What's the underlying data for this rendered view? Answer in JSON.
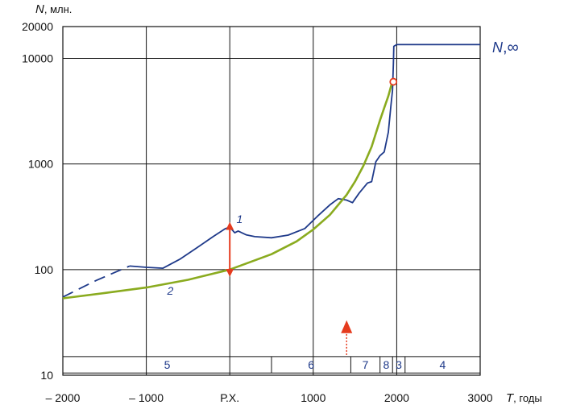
{
  "chart_data": {
    "type": "line",
    "y_scale": "log",
    "grid": true,
    "xlim": [
      -2000,
      3000
    ],
    "ylim": [
      10,
      20000
    ],
    "x_ticks": [
      -2000,
      -1000,
      0,
      1000,
      2000,
      3000
    ],
    "x_tick_labels": [
      "– 2000",
      "– 1000",
      "Р.Х.",
      "1000",
      "2000",
      "3000"
    ],
    "y_ticks": [
      10,
      100,
      1000,
      10000,
      20000
    ],
    "y_tick_labels": [
      "10",
      "100",
      "1000",
      "10000",
      "20000"
    ],
    "y_axis": {
      "var": "N",
      "unit": ", млн."
    },
    "x_axis": {
      "var": "T",
      "unit": ", годы"
    },
    "asymptote_label": {
      "var": "N",
      "sym": ",∞"
    },
    "series": [
      {
        "name": "1",
        "color": "#1f3a8a",
        "dashed_segment": [
          [
            -2000,
            55
          ],
          [
            -1600,
            79
          ],
          [
            -1200,
            108
          ]
        ],
        "points": [
          [
            -1200,
            108
          ],
          [
            -1000,
            105
          ],
          [
            -800,
            103
          ],
          [
            -600,
            125
          ],
          [
            -400,
            160
          ],
          [
            -200,
            205
          ],
          [
            -50,
            245
          ],
          [
            0,
            252
          ],
          [
            60,
            223
          ],
          [
            100,
            232
          ],
          [
            200,
            213
          ],
          [
            300,
            205
          ],
          [
            500,
            200
          ],
          [
            700,
            212
          ],
          [
            900,
            245
          ],
          [
            1050,
            320
          ],
          [
            1200,
            410
          ],
          [
            1300,
            470
          ],
          [
            1400,
            455
          ],
          [
            1470,
            430
          ],
          [
            1550,
            530
          ],
          [
            1650,
            660
          ],
          [
            1700,
            680
          ],
          [
            1750,
            1050
          ],
          [
            1800,
            1200
          ],
          [
            1850,
            1300
          ],
          [
            1900,
            2000
          ],
          [
            1930,
            3500
          ],
          [
            1950,
            5000
          ],
          [
            1960,
            9000
          ],
          [
            1965,
            13000
          ],
          [
            2000,
            13500
          ],
          [
            3000,
            13500
          ]
        ]
      },
      {
        "name": "2",
        "color": "#8aab1f",
        "points": [
          [
            -2000,
            53.5
          ],
          [
            -1500,
            60
          ],
          [
            -1000,
            67.7
          ],
          [
            -500,
            80
          ],
          [
            0,
            100
          ],
          [
            500,
            140
          ],
          [
            800,
            185
          ],
          [
            1000,
            240
          ],
          [
            1200,
            330
          ],
          [
            1400,
            510
          ],
          [
            1500,
            680
          ],
          [
            1600,
            960
          ],
          [
            1700,
            1460
          ],
          [
            1800,
            2600
          ],
          [
            1850,
            3400
          ],
          [
            1900,
            4400
          ],
          [
            1940,
            5750
          ]
        ]
      }
    ],
    "marker": {
      "x": 1960,
      "y": 6000,
      "color": "#e53b1e"
    },
    "vertical_arrow": {
      "x": 0,
      "y_low": 100,
      "y_high": 250,
      "color": "#e53b1e"
    },
    "epoch_bands": [
      {
        "label": "5",
        "from": -2000,
        "to": 500
      },
      {
        "label": "6",
        "from": 500,
        "to": 1450
      },
      {
        "label": "7",
        "from": 1450,
        "to": 1800
      },
      {
        "label": "8",
        "from": 1800,
        "to": 1950
      },
      {
        "label": "3",
        "from": 1950,
        "to": 2100
      },
      {
        "label": "4",
        "from": 2100,
        "to": 3000
      }
    ],
    "time_arrow": {
      "x": 1400,
      "color": "#e53b1e"
    }
  }
}
